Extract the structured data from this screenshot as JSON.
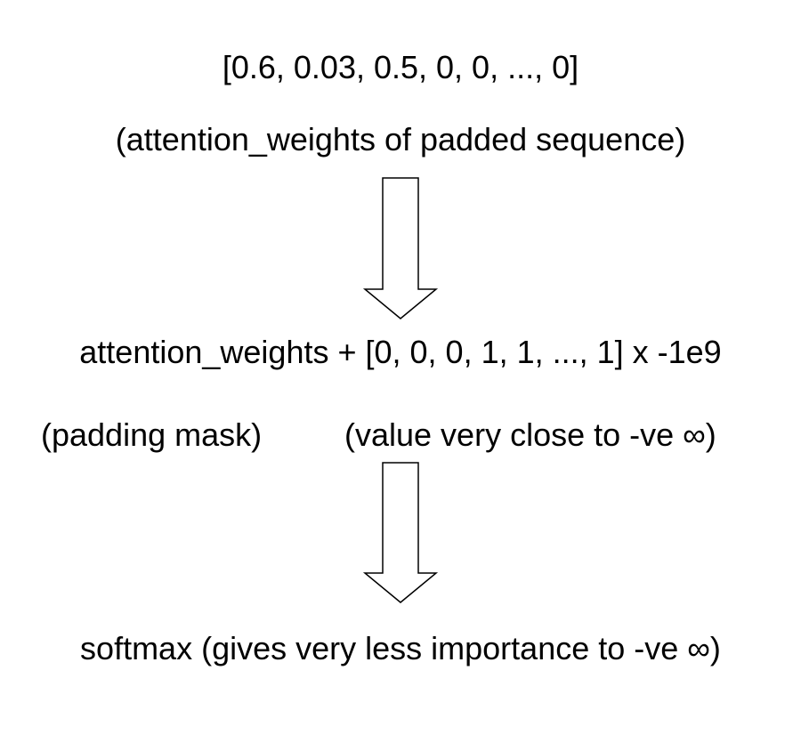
{
  "diagram": {
    "weights_vector": "[0.6, 0.03, 0.5, 0, 0, ..., 0]",
    "weights_caption": "(attention_weights of padded sequence)",
    "mask_expression": "attention_weights + [0, 0, 0, 1, 1, ..., 1] x -1e9",
    "mask_caption": "(padding mask)",
    "value_caption": "(value very close to -ve ∞)",
    "softmax_caption": "softmax (gives very less importance to -ve ∞)"
  },
  "colors": {
    "stroke": "#000000",
    "fill": "#ffffff",
    "text": "#000000"
  }
}
